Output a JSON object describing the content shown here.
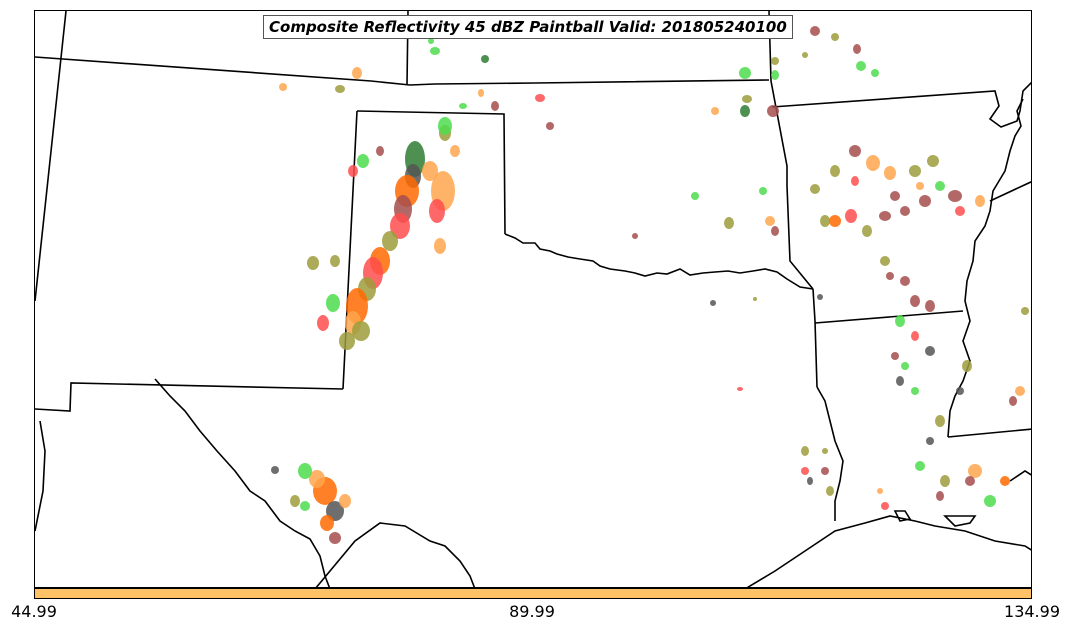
{
  "title": "Composite Reflectivity 45 dBZ Paintball Valid: 201805240100",
  "colorbar": {
    "color": "#ffc266",
    "ticks": [
      "44.99",
      "89.99",
      "134.99"
    ]
  },
  "palette": {
    "red": "#ff4d4d",
    "orange": "#ffa64d",
    "dark_orange": "#ff6a00",
    "green": "#4ddc4d",
    "dark_green": "#2f7d32",
    "olive": "#9c9c3c",
    "brown": "#a64d4d",
    "gray": "#555555"
  }
}
